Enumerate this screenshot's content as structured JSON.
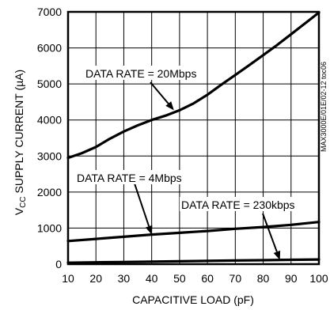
{
  "chart_data": {
    "type": "line",
    "title": "",
    "xlabel": "CAPACITIVE LOAD (pF)",
    "ylabel_parts": [
      "V",
      "CC",
      " SUPPLY CURRENT (µA)"
    ],
    "xlim": [
      10,
      100
    ],
    "ylim": [
      0,
      7000
    ],
    "xticks": [
      10,
      20,
      30,
      40,
      50,
      60,
      70,
      80,
      90,
      100
    ],
    "yticks": [
      0,
      1000,
      2000,
      3000,
      4000,
      5000,
      6000,
      7000
    ],
    "grid": true,
    "side_note": "MAX3000E/01E/02-12 toc06",
    "series": [
      {
        "x": [
          10,
          15,
          20,
          25,
          30,
          35,
          40,
          45,
          50,
          55,
          60,
          65,
          70,
          75,
          80,
          85,
          90,
          95,
          100
        ],
        "values": [
          2950,
          3080,
          3250,
          3480,
          3680,
          3850,
          4000,
          4120,
          4270,
          4460,
          4700,
          4980,
          5250,
          5520,
          5800,
          6080,
          6380,
          6680,
          6980
        ]
      },
      {
        "x": [
          10,
          20,
          30,
          40,
          50,
          60,
          70,
          80,
          90,
          100
        ],
        "values": [
          640,
          700,
          760,
          820,
          870,
          920,
          980,
          1030,
          1090,
          1170
        ]
      },
      {
        "x": [
          10,
          20,
          30,
          40,
          50,
          60,
          70,
          80,
          90,
          100
        ],
        "values": [
          40,
          50,
          60,
          70,
          80,
          90,
          100,
          110,
          120,
          130
        ]
      }
    ],
    "annotations": [
      {
        "text": "DATA RATE = 20Mbps",
        "target": {
          "x": 48,
          "y": 4270
        }
      },
      {
        "text": "DATA RATE = 4Mbps",
        "target": {
          "x": 40,
          "y": 820
        }
      },
      {
        "text": "DATA RATE = 230kbps",
        "target": {
          "x": 86,
          "y": 115
        }
      }
    ]
  }
}
